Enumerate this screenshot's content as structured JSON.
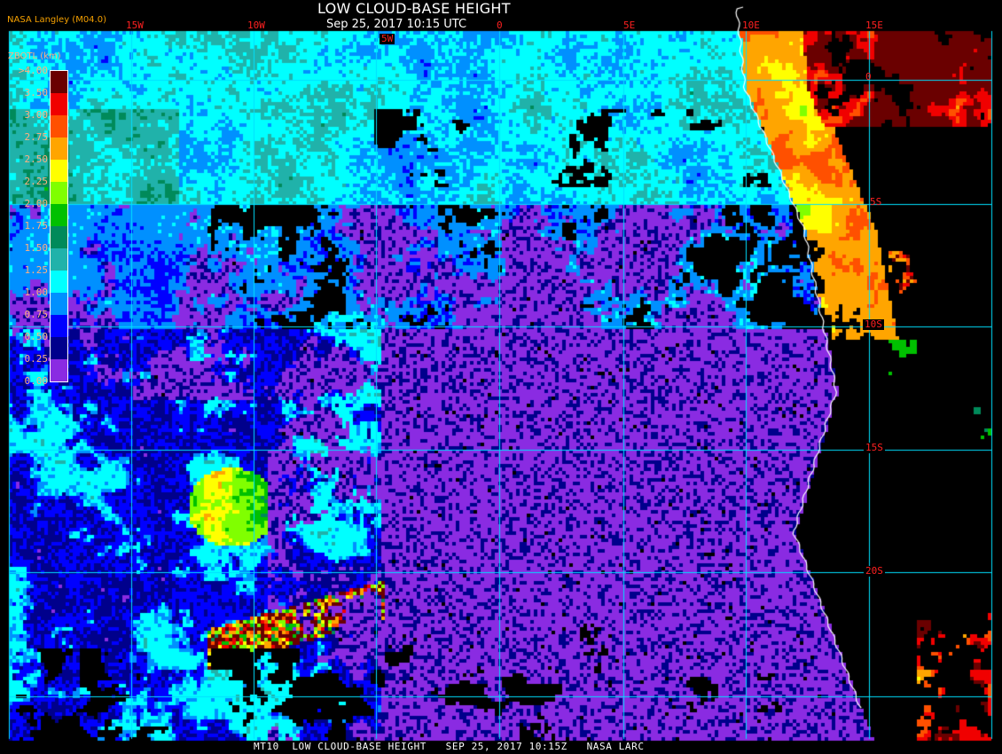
{
  "header": {
    "title": "LOW CLOUD-BASE HEIGHT",
    "datetime": "Sep 25, 2017 10:15 UTC",
    "credit": "NASA Langley (M04.0)"
  },
  "longitude_labels": [
    "15W",
    "10W",
    "5W",
    "0",
    "5E",
    "10E",
    "15E"
  ],
  "latitude_labels": [
    "0",
    "5S",
    "10S",
    "15S",
    "20S"
  ],
  "legend": {
    "title": "ZBOTL (km)",
    "labels": [
      ">4.00",
      "3.50",
      "3.00",
      "2.75",
      "2.50",
      "2.25",
      "2.00",
      "1.75",
      "1.50",
      "1.25",
      "1.00",
      "0.75",
      "0.50",
      "0.25",
      "0.00"
    ],
    "colors": [
      "#6a0000",
      "#f00000",
      "#ff5000",
      "#ffa500",
      "#ffff00",
      "#80ff00",
      "#00c000",
      "#008a5a",
      "#20b2aa",
      "#00ffff",
      "#0090ff",
      "#0000ff",
      "#00008c",
      "#8a2be2"
    ]
  },
  "colors": {
    "gridline": "#00e0ff",
    "coastline": "#ffffff",
    "no_data": "#000000",
    "grid_label": "#ff2020"
  },
  "footer": {
    "text": "MT10  LOW CLOUD-BASE HEIGHT   SEP 25, 2017 10:15Z   NASA LARC"
  }
}
